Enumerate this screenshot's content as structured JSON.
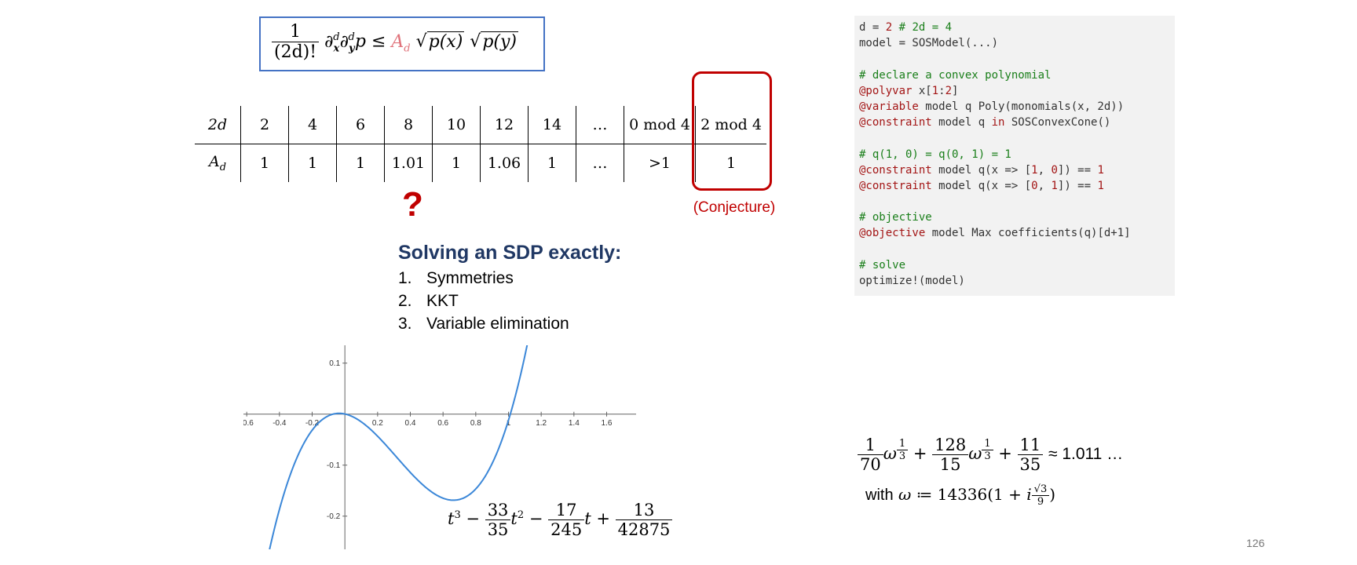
{
  "formula": {
    "frac_num": "1",
    "frac_den": "(2d)!",
    "partial": "∂",
    "x_sym": "x",
    "y_sym": "y",
    "d_sym": "d",
    "p_sym": "p",
    "leq": "≤",
    "A_sym": "A",
    "sqrt_px": "p(x)",
    "sqrt_py": "p(y)",
    "colors": {
      "border": "#4472c4",
      "A": "#e0727a"
    }
  },
  "table": {
    "row1": [
      "2d",
      "2",
      "4",
      "6",
      "8",
      "10",
      "12",
      "14",
      "…",
      "0 mod 4",
      "2 mod 4"
    ],
    "row2": [
      "A_d",
      "1",
      "1",
      "1",
      "1.01",
      "1",
      "1.06",
      "1",
      "…",
      ">1",
      "1"
    ],
    "row_label_2": {
      "base": "A",
      "sub": "d"
    }
  },
  "question_mark": "?",
  "conjecture_label": "(Conjecture)",
  "sdp": {
    "title": "Solving an SDP exactly:",
    "items": [
      {
        "n": "1.",
        "label": "Symmetries"
      },
      {
        "n": "2.",
        "label": "KKT"
      },
      {
        "n": "3.",
        "label": "Variable elimination"
      }
    ]
  },
  "code": {
    "lines": [
      "d = 2 # 2d = 4",
      "model = SOSModel(...)",
      "",
      "# declare a convex polynomial",
      "@polyvar x[1:2]",
      "@variable model q Poly(monomials(x, 2d))",
      "@constraint model q in SOSConvexCone()",
      "",
      "# q(1, 0) = q(0, 1) = 1",
      "@constraint model q(x => [1, 0]) == 1",
      "@constraint model q(x => [0, 1]) == 1",
      "",
      "# objective",
      "@objective model Max coefficients(q)[d+1]",
      "",
      "# solve",
      "optimize!(model)"
    ]
  },
  "chart_data": {
    "type": "line",
    "series": [
      {
        "function": "t^3 - 33/35 t^2 - 17/245 t + 13/42875"
      }
    ],
    "xticks": [
      "-0.6",
      "-0.4",
      "-0.2",
      "0.2",
      "0.4",
      "0.6",
      "0.8",
      "1",
      "1.2",
      "1.4",
      "1.6"
    ],
    "yticks": [
      "0.1",
      "-0.1",
      "-0.2"
    ],
    "xlim": [
      -0.62,
      1.78
    ],
    "ylim": [
      -0.265,
      0.135
    ],
    "line_color": "#3b87d8"
  },
  "poly_label": {
    "t": "t",
    "f1_num": "33",
    "f1_den": "35",
    "f2_num": "17",
    "f2_den": "245",
    "f3_num": "13",
    "f3_den": "42875"
  },
  "result": {
    "a_num": "1",
    "a_den": "70",
    "b_num": "128",
    "b_den": "15",
    "c_num": "11",
    "c_den": "35",
    "approx": "≈ 1.011 …",
    "omega_prefix": "with",
    "omega_def": "≔ 14336(1 + ",
    "omega_close": ")",
    "sqrt3": "√3",
    "nine": "9"
  },
  "page_number": "126"
}
